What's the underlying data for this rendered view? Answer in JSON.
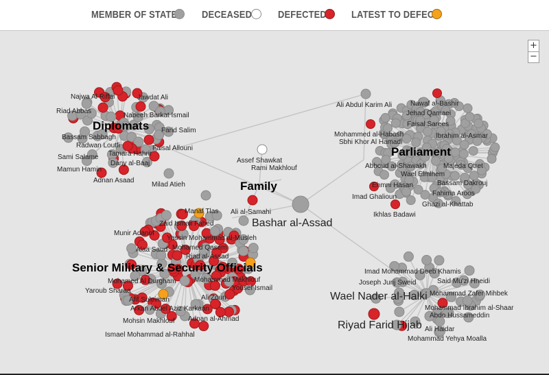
{
  "legend": {
    "member": {
      "label": "MEMBER OF STATE",
      "color": "#a0a0a0"
    },
    "deceased": {
      "label": "DECEASED",
      "color": "#ffffff"
    },
    "defected": {
      "label": "DEFECTED",
      "color": "#d8232a"
    },
    "latest": {
      "label": "LATEST TO DEFECT",
      "color": "#f5a11b"
    }
  },
  "zoom": {
    "in": "+",
    "out": "−"
  },
  "center": {
    "name": "Bashar al-Assad"
  },
  "groups": {
    "diplomats": "Diplomats",
    "parliament": "Parliament",
    "family": "Family",
    "military": "Senior Military & Security Officials"
  },
  "people": {
    "diplomats": [
      "Najwa Al Riffai",
      "Jawdat Ali",
      "Riad Abbas",
      "Nabeeh Barkat Ismail",
      "Farid Salim",
      "Bassam Sabbagh",
      "Radwan Loutfi",
      "Faisal Allouni",
      "Sami Salame",
      "Tamara Hahrir",
      "Dany al-Baaj",
      "Mamun Hamin",
      "Adnan Asaad",
      "Milad Atieh"
    ],
    "parliament": [
      "Ali Abdul Karim Ali",
      "Nawaf al-Bashir",
      "Jehad Qamaei",
      "Faisal Sarees",
      "Ibrahim al-Asmar",
      "Mohammed al-Habash",
      "Sbhi Khor Al Hamadi",
      "Abboud al-Shawakh",
      "Majeda Qtret",
      "Wael Elmlhem",
      "Bassam Dakrouj",
      "Ehmni Hasan",
      "Fahima Aroos",
      "Imad Ghalioun",
      "Ghazi al-Khattab",
      "Ikhlas Badawi"
    ],
    "family": [
      "Assef Shawkat",
      "Rami Makhlouf",
      "Manaf Tlas",
      "Ali al-Samahi"
    ],
    "military": [
      "Zaid Ismail Fahed",
      "Munir Adanof",
      "Yassin Mohammad al-Musleh",
      "Mohamed Qasem",
      "Alaa Saud",
      "Riad al-Assad",
      "Mohamed Al Durgham",
      "Mohammad Makhlouf",
      "Yousef Ismail",
      "Yaroub Sharaa",
      "Afif Suleiman",
      "Ali Zoun",
      "Arkan Abdel Aziz Karkaan",
      "Mohsin Makhlouf",
      "Adnan al-Ahmad",
      "Ismael Mohammad al-Rahhal"
    ],
    "other": [
      "Imad Mohammad Deeb Khamis",
      "Joseph Jurij Sweid",
      "Said Mu'zi Hneidi",
      "Mohammad Zafer Mihbek",
      "Wael Nader al-Halki",
      "Mohammad Ibrahim al-Shaar",
      "Abdo Hussameddin",
      "Riyad Farid Hijab",
      "Ali Haidar",
      "Mohammad Yehya Moalla"
    ]
  }
}
